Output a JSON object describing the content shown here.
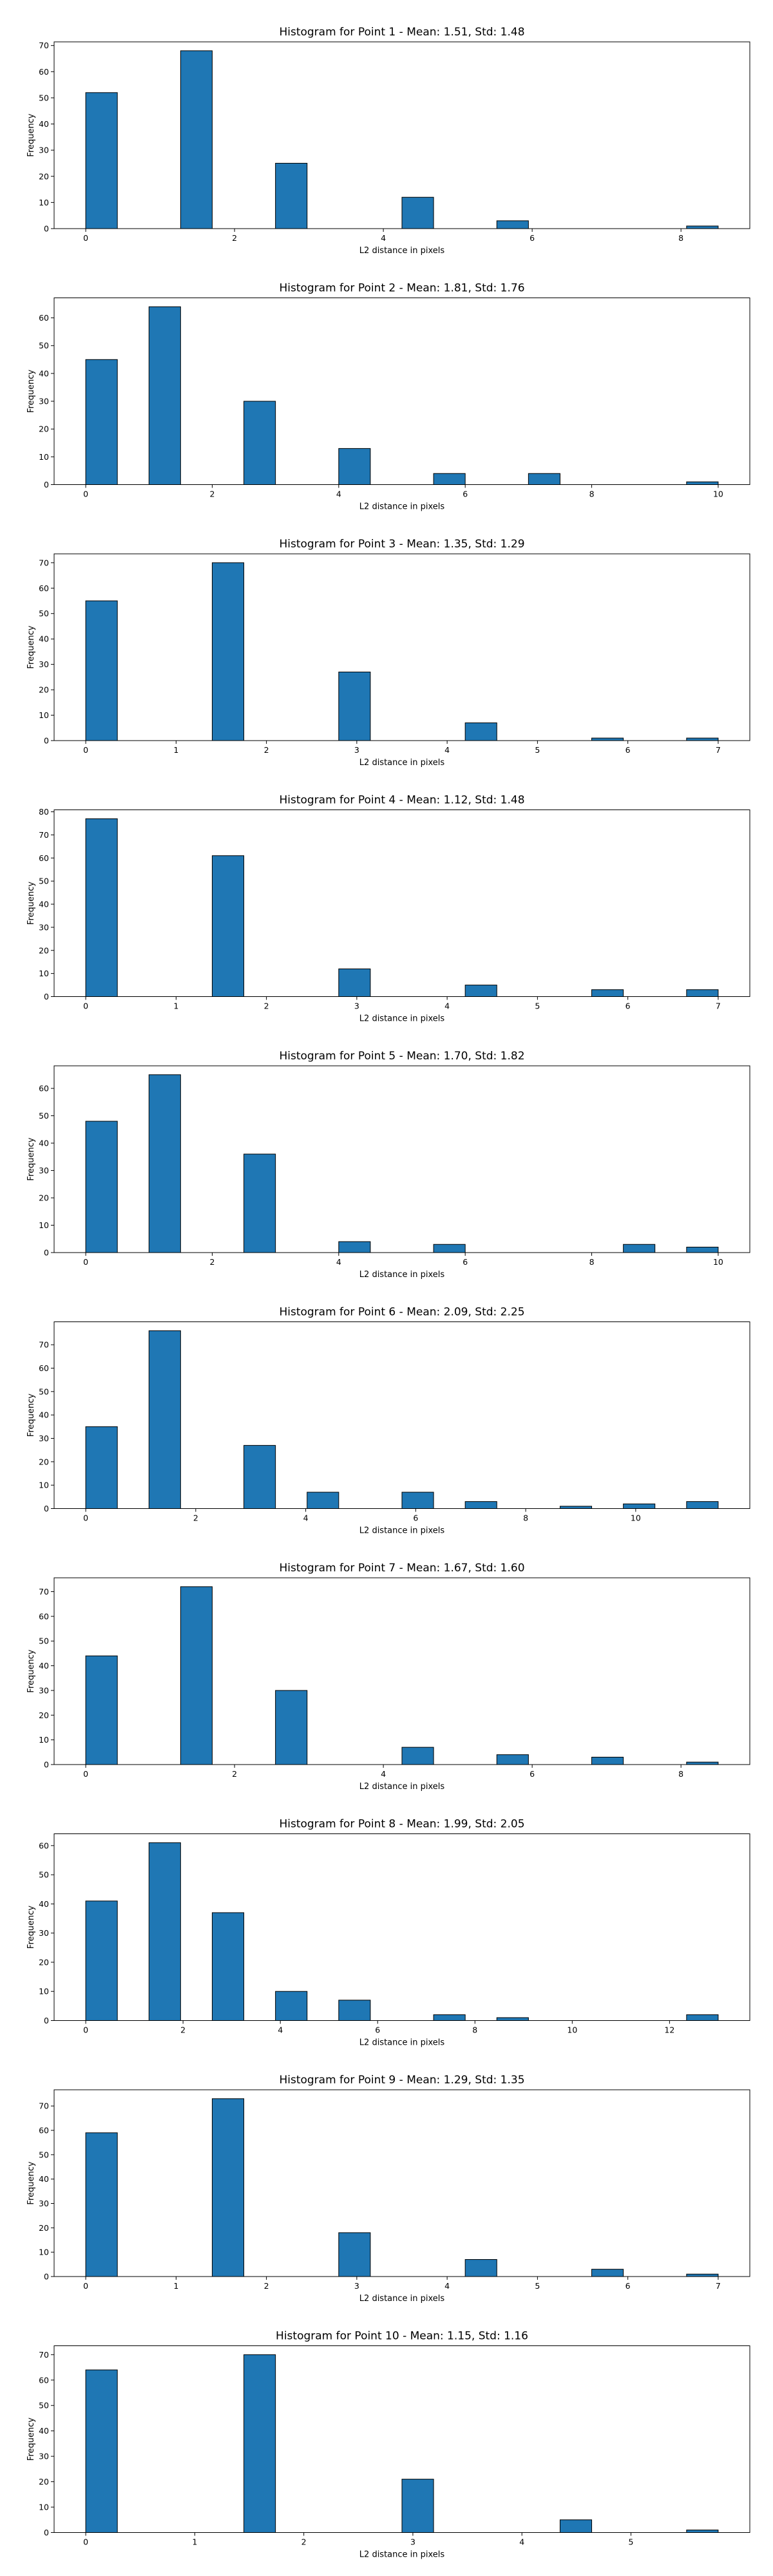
{
  "chart_data": [
    {
      "type": "bar",
      "title": "Histogram for Point 1 - Mean: 1.51, Std: 1.48",
      "xlabel": "L2 distance in pixels",
      "ylabel": "Frequency",
      "xlim": [
        -0.425,
        8.925
      ],
      "ylim": [
        0,
        71.4
      ],
      "xticks": [
        0,
        2,
        4,
        6,
        8
      ],
      "yticks": [
        0,
        10,
        20,
        30,
        40,
        50,
        60,
        70
      ],
      "bins": [
        {
          "x0": 0.0,
          "x1": 0.425,
          "count": 52
        },
        {
          "x0": 1.275,
          "x1": 1.7,
          "count": 68
        },
        {
          "x0": 2.55,
          "x1": 2.975,
          "count": 25
        },
        {
          "x0": 4.25,
          "x1": 4.675,
          "count": 12
        },
        {
          "x0": 5.525,
          "x1": 5.95,
          "count": 3
        },
        {
          "x0": 8.075,
          "x1": 8.5,
          "count": 1
        }
      ]
    },
    {
      "type": "bar",
      "title": "Histogram for Point 2 - Mean: 1.81, Std: 1.76",
      "xlabel": "L2 distance in pixels",
      "ylabel": "Frequency",
      "xlim": [
        -0.5,
        10.5
      ],
      "ylim": [
        0,
        67.2
      ],
      "xticks": [
        0,
        2,
        4,
        6,
        8,
        10
      ],
      "yticks": [
        0,
        10,
        20,
        30,
        40,
        50,
        60
      ],
      "bins": [
        {
          "x0": 0.0,
          "x1": 0.5,
          "count": 45
        },
        {
          "x0": 1.0,
          "x1": 1.5,
          "count": 64
        },
        {
          "x0": 2.5,
          "x1": 3.0,
          "count": 30
        },
        {
          "x0": 4.0,
          "x1": 4.5,
          "count": 13
        },
        {
          "x0": 5.5,
          "x1": 6.0,
          "count": 4
        },
        {
          "x0": 7.0,
          "x1": 7.5,
          "count": 4
        },
        {
          "x0": 9.5,
          "x1": 10.0,
          "count": 1
        }
      ]
    },
    {
      "type": "bar",
      "title": "Histogram for Point 3 - Mean: 1.35, Std: 1.29",
      "xlabel": "L2 distance in pixels",
      "ylabel": "Frequency",
      "xlim": [
        -0.35,
        7.35
      ],
      "ylim": [
        0,
        73.5
      ],
      "xticks": [
        0,
        1,
        2,
        3,
        4,
        5,
        6,
        7
      ],
      "yticks": [
        0,
        10,
        20,
        30,
        40,
        50,
        60,
        70
      ],
      "bins": [
        {
          "x0": 0.0,
          "x1": 0.35,
          "count": 55
        },
        {
          "x0": 1.4,
          "x1": 1.75,
          "count": 70
        },
        {
          "x0": 2.8,
          "x1": 3.15,
          "count": 27
        },
        {
          "x0": 4.2,
          "x1": 4.55,
          "count": 7
        },
        {
          "x0": 5.6,
          "x1": 5.95,
          "count": 1
        },
        {
          "x0": 6.65,
          "x1": 7.0,
          "count": 1
        }
      ]
    },
    {
      "type": "bar",
      "title": "Histogram for Point 4 - Mean: 1.12, Std: 1.48",
      "xlabel": "L2 distance in pixels",
      "ylabel": "Frequency",
      "xlim": [
        -0.35,
        7.35
      ],
      "ylim": [
        0,
        80.85
      ],
      "xticks": [
        0,
        1,
        2,
        3,
        4,
        5,
        6,
        7
      ],
      "yticks": [
        0,
        10,
        20,
        30,
        40,
        50,
        60,
        70,
        80
      ],
      "bins": [
        {
          "x0": 0.0,
          "x1": 0.35,
          "count": 77
        },
        {
          "x0": 1.4,
          "x1": 1.75,
          "count": 61
        },
        {
          "x0": 2.8,
          "x1": 3.15,
          "count": 12
        },
        {
          "x0": 4.2,
          "x1": 4.55,
          "count": 5
        },
        {
          "x0": 5.6,
          "x1": 5.95,
          "count": 3
        },
        {
          "x0": 6.65,
          "x1": 7.0,
          "count": 3
        }
      ]
    },
    {
      "type": "bar",
      "title": "Histogram for Point 5 - Mean: 1.70, Std: 1.82",
      "xlabel": "L2 distance in pixels",
      "ylabel": "Frequency",
      "xlim": [
        -0.5,
        10.5
      ],
      "ylim": [
        0,
        68.25
      ],
      "xticks": [
        0,
        2,
        4,
        6,
        8,
        10
      ],
      "yticks": [
        0,
        10,
        20,
        30,
        40,
        50,
        60
      ],
      "bins": [
        {
          "x0": 0.0,
          "x1": 0.5,
          "count": 48
        },
        {
          "x0": 1.0,
          "x1": 1.5,
          "count": 65
        },
        {
          "x0": 2.5,
          "x1": 3.0,
          "count": 36
        },
        {
          "x0": 4.0,
          "x1": 4.5,
          "count": 4
        },
        {
          "x0": 5.5,
          "x1": 6.0,
          "count": 3
        },
        {
          "x0": 8.5,
          "x1": 9.0,
          "count": 3
        },
        {
          "x0": 9.5,
          "x1": 10.0,
          "count": 2
        }
      ]
    },
    {
      "type": "bar",
      "title": "Histogram for Point 6 - Mean: 2.09, Std: 2.25",
      "xlabel": "L2 distance in pixels",
      "ylabel": "Frequency",
      "xlim": [
        -0.575,
        12.075
      ],
      "ylim": [
        0,
        79.8
      ],
      "xticks": [
        0,
        2,
        4,
        6,
        8,
        10
      ],
      "yticks": [
        0,
        10,
        20,
        30,
        40,
        50,
        60,
        70
      ],
      "bins": [
        {
          "x0": 0.0,
          "x1": 0.575,
          "count": 35
        },
        {
          "x0": 1.15,
          "x1": 1.725,
          "count": 76
        },
        {
          "x0": 2.875,
          "x1": 3.45,
          "count": 27
        },
        {
          "x0": 4.025,
          "x1": 4.6,
          "count": 7
        },
        {
          "x0": 5.75,
          "x1": 6.325,
          "count": 7
        },
        {
          "x0": 6.9,
          "x1": 7.475,
          "count": 3
        },
        {
          "x0": 8.625,
          "x1": 9.2,
          "count": 1
        },
        {
          "x0": 9.775,
          "x1": 10.35,
          "count": 2
        },
        {
          "x0": 10.925,
          "x1": 11.5,
          "count": 3
        }
      ]
    },
    {
      "type": "bar",
      "title": "Histogram for Point 7 - Mean: 1.67, Std: 1.60",
      "xlabel": "L2 distance in pixels",
      "ylabel": "Frequency",
      "xlim": [
        -0.425,
        8.925
      ],
      "ylim": [
        0,
        75.6
      ],
      "xticks": [
        0,
        2,
        4,
        6,
        8
      ],
      "yticks": [
        0,
        10,
        20,
        30,
        40,
        50,
        60,
        70
      ],
      "bins": [
        {
          "x0": 0.0,
          "x1": 0.425,
          "count": 44
        },
        {
          "x0": 1.275,
          "x1": 1.7,
          "count": 72
        },
        {
          "x0": 2.55,
          "x1": 2.975,
          "count": 30
        },
        {
          "x0": 4.25,
          "x1": 4.675,
          "count": 7
        },
        {
          "x0": 5.525,
          "x1": 5.95,
          "count": 4
        },
        {
          "x0": 6.8,
          "x1": 7.225,
          "count": 3
        },
        {
          "x0": 8.075,
          "x1": 8.5,
          "count": 1
        }
      ]
    },
    {
      "type": "bar",
      "title": "Histogram for Point 8 - Mean: 1.99, Std: 2.05",
      "xlabel": "L2 distance in pixels",
      "ylabel": "Frequency",
      "xlim": [
        -0.65,
        13.65
      ],
      "ylim": [
        0,
        64.05
      ],
      "xticks": [
        0,
        2,
        4,
        6,
        8,
        10,
        12
      ],
      "yticks": [
        0,
        10,
        20,
        30,
        40,
        50,
        60
      ],
      "bins": [
        {
          "x0": 0.0,
          "x1": 0.65,
          "count": 41
        },
        {
          "x0": 1.3,
          "x1": 1.95,
          "count": 61
        },
        {
          "x0": 2.6,
          "x1": 3.25,
          "count": 37
        },
        {
          "x0": 3.9,
          "x1": 4.55,
          "count": 10
        },
        {
          "x0": 5.2,
          "x1": 5.85,
          "count": 7
        },
        {
          "x0": 7.15,
          "x1": 7.8,
          "count": 2
        },
        {
          "x0": 8.45,
          "x1": 9.1,
          "count": 1
        },
        {
          "x0": 12.35,
          "x1": 13.0,
          "count": 2
        }
      ]
    },
    {
      "type": "bar",
      "title": "Histogram for Point 9 - Mean: 1.29, Std: 1.35",
      "xlabel": "L2 distance in pixels",
      "ylabel": "Frequency",
      "xlim": [
        -0.35,
        7.35
      ],
      "ylim": [
        0,
        76.65
      ],
      "xticks": [
        0,
        1,
        2,
        3,
        4,
        5,
        6,
        7
      ],
      "yticks": [
        0,
        10,
        20,
        30,
        40,
        50,
        60,
        70
      ],
      "bins": [
        {
          "x0": 0.0,
          "x1": 0.35,
          "count": 59
        },
        {
          "x0": 1.4,
          "x1": 1.75,
          "count": 73
        },
        {
          "x0": 2.8,
          "x1": 3.15,
          "count": 18
        },
        {
          "x0": 4.2,
          "x1": 4.55,
          "count": 7
        },
        {
          "x0": 5.6,
          "x1": 5.95,
          "count": 3
        },
        {
          "x0": 6.65,
          "x1": 7.0,
          "count": 1
        }
      ]
    },
    {
      "type": "bar",
      "title": "Histogram for Point 10 - Mean: 1.15, Std: 1.16",
      "xlabel": "L2 distance in pixels",
      "ylabel": "Frequency",
      "xlim": [
        -0.29,
        6.09
      ],
      "ylim": [
        0,
        73.5
      ],
      "xticks": [
        0,
        1,
        2,
        3,
        4,
        5
      ],
      "yticks": [
        0,
        10,
        20,
        30,
        40,
        50,
        60,
        70
      ],
      "bins": [
        {
          "x0": 0.0,
          "x1": 0.29,
          "count": 64
        },
        {
          "x0": 1.45,
          "x1": 1.74,
          "count": 70
        },
        {
          "x0": 2.9,
          "x1": 3.19,
          "count": 21
        },
        {
          "x0": 4.35,
          "x1": 4.64,
          "count": 5
        },
        {
          "x0": 5.51,
          "x1": 5.8,
          "count": 1
        }
      ]
    }
  ]
}
